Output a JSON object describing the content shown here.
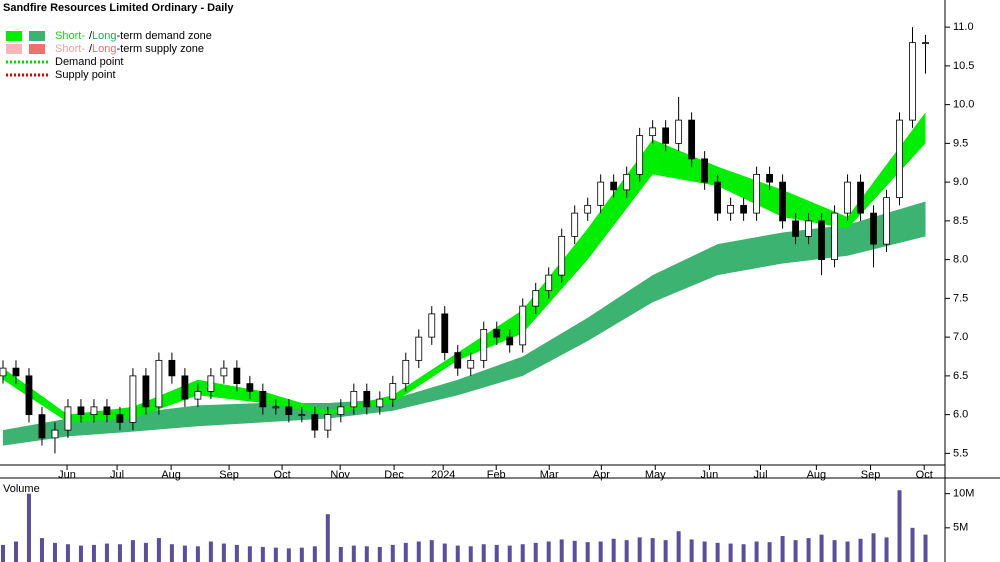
{
  "chart_data": {
    "type": "candlestick",
    "title": "Sandfire Resources Limited Ordinary - Daily",
    "legend": [
      {
        "parts": [
          "Short-",
          "/",
          "Long",
          "-term demand zone"
        ],
        "colors": [
          "#00ee00",
          "#3cb371"
        ],
        "text_colors": [
          "#22cc22",
          "#000000",
          "#22aa55",
          "#000000"
        ]
      },
      {
        "parts": [
          "Short-",
          "/",
          "Long",
          "-term supply zone"
        ],
        "colors": [
          "#f4b6b6",
          "#f07070"
        ],
        "text_colors": [
          "#f4a0a0",
          "#000000",
          "#f07070",
          "#000000"
        ]
      },
      {
        "parts": [
          "Demand point"
        ],
        "colors": [
          "#00dd00"
        ],
        "text_colors": [
          "#000000"
        ]
      },
      {
        "parts": [
          "Supply point"
        ],
        "colors": [
          "#dd0000"
        ],
        "text_colors": [
          "#000000"
        ]
      }
    ],
    "xlim": [
      -0.23,
      72.5
    ],
    "xticks": [
      {
        "value": 4.93,
        "label": "Jun"
      },
      {
        "value": 8.78,
        "label": "Jul"
      },
      {
        "value": 12.94,
        "label": "Aug"
      },
      {
        "value": 17.4,
        "label": "Sep"
      },
      {
        "value": 21.48,
        "label": "Oct"
      },
      {
        "value": 25.95,
        "label": "Nov"
      },
      {
        "value": 30.1,
        "label": "Dec"
      },
      {
        "value": 33.88,
        "label": "2024"
      },
      {
        "value": 37.96,
        "label": "Feb"
      },
      {
        "value": 42.04,
        "label": "Mar"
      },
      {
        "value": 46.05,
        "label": "Apr"
      },
      {
        "value": 50.2,
        "label": "May"
      },
      {
        "value": 54.37,
        "label": "Jun"
      },
      {
        "value": 58.3,
        "label": "Jul"
      },
      {
        "value": 62.6,
        "label": "Aug"
      },
      {
        "value": 66.77,
        "label": "Sep"
      },
      {
        "value": 70.9,
        "label": "Oct"
      }
    ],
    "ylim": [
      5.35,
      11.35
    ],
    "yticks": [
      5.5,
      {
        "value": 6,
        "label": "6.0"
      },
      6.5,
      {
        "value": 7,
        "label": "7.0"
      },
      7.5,
      {
        "value": 8,
        "label": "8.0"
      },
      8.5,
      {
        "value": 9,
        "label": "9.0"
      },
      9.5,
      {
        "value": 10,
        "label": "10.0"
      },
      10.5,
      {
        "value": 11,
        "label": "11.0"
      }
    ],
    "open": [
      6.5,
      6.6,
      6.5,
      6.0,
      5.7,
      5.8,
      6.1,
      6.0,
      6.1,
      6.0,
      5.9,
      6.5,
      6.1,
      6.7,
      6.5,
      6.2,
      6.3,
      6.5,
      6.6,
      6.4,
      6.3,
      6.1,
      6.1,
      6.0,
      6.0,
      5.8,
      6.0,
      6.1,
      6.3,
      6.1,
      6.2,
      6.4,
      6.7,
      7.0,
      7.3,
      6.8,
      6.6,
      6.7,
      7.1,
      7.0,
      6.9,
      7.4,
      7.6,
      7.8,
      8.3,
      8.6,
      8.7,
      9.0,
      8.9,
      9.1,
      9.6,
      9.7,
      9.5,
      9.8,
      9.3,
      9.0,
      8.6,
      8.7,
      8.6,
      9.1,
      9.0,
      8.5,
      8.3,
      8.5,
      8.0,
      8.6,
      9.0,
      8.6,
      8.2,
      8.8,
      9.8,
      10.8
    ],
    "high": [
      6.7,
      6.7,
      6.6,
      6.1,
      5.9,
      6.2,
      6.2,
      6.2,
      6.2,
      6.1,
      6.6,
      6.6,
      6.8,
      6.8,
      6.6,
      6.4,
      6.6,
      6.7,
      6.7,
      6.5,
      6.4,
      6.2,
      6.2,
      6.1,
      6.1,
      6.1,
      6.2,
      6.4,
      6.4,
      6.3,
      6.5,
      6.8,
      7.1,
      7.4,
      7.4,
      6.9,
      6.8,
      7.2,
      7.2,
      7.1,
      7.5,
      7.7,
      7.9,
      8.4,
      8.7,
      8.8,
      9.1,
      9.1,
      9.2,
      9.7,
      9.8,
      9.8,
      10.1,
      9.9,
      9.4,
      9.1,
      8.8,
      8.8,
      9.2,
      9.2,
      9.1,
      8.6,
      8.6,
      8.6,
      8.7,
      9.1,
      9.1,
      8.7,
      8.9,
      9.9,
      11.0,
      10.9
    ],
    "low": [
      6.4,
      6.4,
      5.9,
      5.6,
      5.5,
      5.7,
      5.9,
      5.9,
      5.9,
      5.8,
      5.8,
      6.0,
      6.0,
      6.4,
      6.1,
      6.1,
      6.2,
      6.4,
      6.3,
      6.2,
      6.0,
      6.0,
      5.9,
      5.9,
      5.7,
      5.7,
      5.9,
      6.0,
      6.0,
      6.0,
      6.1,
      6.3,
      6.6,
      6.9,
      6.7,
      6.5,
      6.5,
      6.6,
      6.9,
      6.8,
      6.8,
      7.3,
      7.5,
      7.7,
      8.2,
      8.5,
      8.6,
      8.8,
      8.8,
      9.0,
      9.5,
      9.4,
      9.4,
      9.2,
      8.9,
      8.5,
      8.5,
      8.5,
      8.5,
      8.9,
      8.4,
      8.2,
      8.2,
      7.8,
      7.9,
      8.5,
      8.5,
      7.9,
      8.1,
      8.7,
      9.7,
      10.4
    ],
    "close": [
      6.6,
      6.5,
      6.0,
      5.7,
      5.8,
      6.1,
      6.0,
      6.1,
      6.0,
      5.9,
      6.5,
      6.1,
      6.7,
      6.5,
      6.2,
      6.3,
      6.5,
      6.6,
      6.4,
      6.3,
      6.1,
      6.1,
      6.0,
      6.0,
      5.8,
      6.0,
      6.1,
      6.3,
      6.1,
      6.2,
      6.4,
      6.7,
      7.0,
      7.3,
      6.8,
      6.6,
      6.7,
      7.1,
      7.0,
      6.9,
      7.4,
      7.6,
      7.8,
      8.3,
      8.6,
      8.7,
      9.0,
      8.9,
      9.1,
      9.6,
      9.7,
      9.5,
      9.8,
      9.3,
      9.0,
      8.6,
      8.7,
      8.6,
      9.1,
      9.0,
      8.5,
      8.3,
      8.5,
      8.0,
      8.6,
      9.0,
      8.6,
      8.2,
      8.8,
      9.8,
      10.8,
      10.8
    ],
    "zone_x": [
      0,
      5,
      10,
      15,
      20,
      25,
      30,
      35,
      40,
      45,
      50,
      55,
      60,
      65,
      71
    ],
    "long_zone": {
      "color": "#3cb371",
      "lower": [
        5.6,
        5.72,
        5.78,
        5.85,
        5.9,
        5.95,
        6.05,
        6.25,
        6.5,
        6.95,
        7.45,
        7.8,
        7.95,
        8.05,
        8.3
      ],
      "upper": [
        5.8,
        5.95,
        6.02,
        6.12,
        6.15,
        6.15,
        6.2,
        6.45,
        6.75,
        7.25,
        7.8,
        8.2,
        8.35,
        8.45,
        8.75
      ]
    },
    "short_zone": {
      "color": "#00ee00",
      "lower": [
        6.45,
        5.9,
        5.95,
        6.25,
        6.15,
        6.0,
        6.15,
        6.7,
        7.05,
        8.0,
        9.1,
        8.95,
        8.55,
        8.4,
        9.5
      ],
      "upper": [
        6.6,
        6.0,
        6.1,
        6.45,
        6.3,
        6.05,
        6.25,
        6.8,
        7.35,
        8.4,
        9.55,
        9.2,
        8.9,
        8.55,
        9.9
      ]
    },
    "volume": {
      "label": "Volume",
      "color": "#5a4ea0",
      "ylim": [
        0,
        12000000
      ],
      "yticks": [
        {
          "value": 5000000,
          "label": "5M"
        },
        {
          "value": 10000000,
          "label": "10M"
        }
      ],
      "values": [
        2500000,
        3000000,
        10000000,
        3500000,
        2800000,
        2600000,
        2400000,
        2500000,
        2700000,
        2600000,
        3200000,
        2800000,
        3500000,
        2600000,
        2400000,
        2300000,
        3000000,
        2700000,
        2500000,
        2300000,
        2200000,
        2100000,
        2000000,
        2100000,
        2300000,
        7000000,
        2200000,
        2400000,
        2300000,
        2200000,
        2500000,
        2800000,
        3000000,
        3200000,
        2700000,
        2400000,
        2300000,
        2600000,
        2500000,
        2400000,
        2600000,
        2800000,
        3000000,
        3300000,
        3100000,
        2900000,
        3000000,
        3400000,
        3200000,
        3600000,
        3500000,
        3200000,
        4500000,
        3300000,
        3000000,
        2800000,
        2700000,
        2600000,
        3000000,
        2900000,
        3800000,
        3200000,
        3500000,
        4000000,
        3200000,
        3000000,
        3400000,
        4200000,
        3600000,
        10500000,
        5000000,
        4000000
      ]
    }
  }
}
